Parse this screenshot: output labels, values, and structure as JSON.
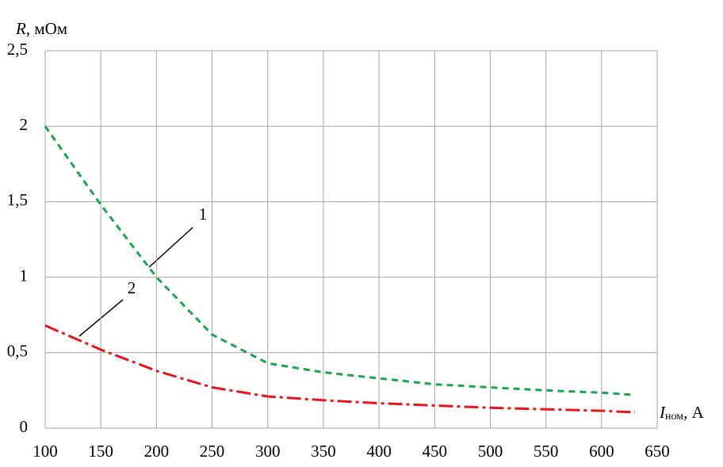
{
  "chart_data": {
    "type": "line",
    "ylabel": [
      "R",
      ", мОм"
    ],
    "xlabel": [
      "I",
      "ном",
      ", A"
    ],
    "x": [
      100,
      150,
      200,
      250,
      300,
      350,
      400,
      450,
      500,
      550,
      600,
      630
    ],
    "series": [
      {
        "name": "1",
        "color": "#1aa64a",
        "dash": "8,6",
        "values": [
          2.0,
          1.48,
          1.0,
          0.62,
          0.43,
          0.37,
          0.33,
          0.29,
          0.27,
          0.25,
          0.235,
          0.22
        ]
      },
      {
        "name": "2",
        "color": "#e8161b",
        "dash": "18,5,4,5",
        "values": [
          0.68,
          0.52,
          0.38,
          0.27,
          0.21,
          0.185,
          0.165,
          0.15,
          0.135,
          0.125,
          0.115,
          0.105
        ]
      }
    ],
    "xlim": [
      100,
      650
    ],
    "ylim": [
      0,
      2.5
    ],
    "xticks": [
      100,
      150,
      200,
      250,
      300,
      350,
      400,
      450,
      500,
      550,
      600,
      650
    ],
    "yticks": [
      0,
      {
        "value": 0.5,
        "label": "0,5"
      },
      1,
      {
        "value": 1.5,
        "label": "1,5"
      },
      2,
      {
        "value": 2.5,
        "label": "2,5"
      }
    ],
    "grid": true
  }
}
